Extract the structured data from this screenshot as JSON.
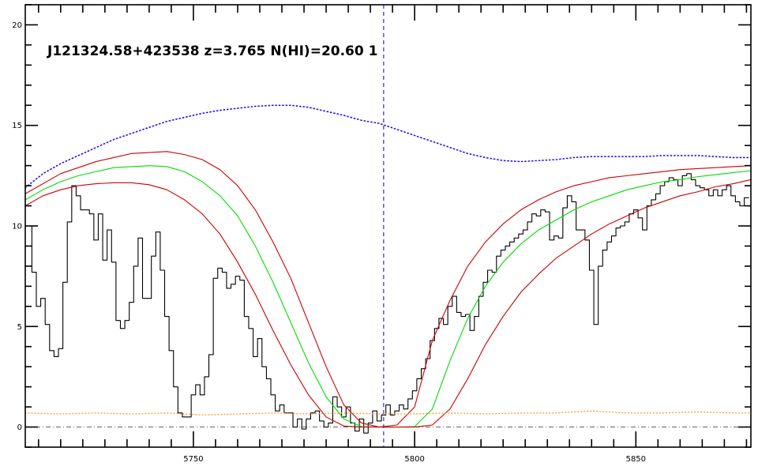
{
  "chart_data": {
    "type": "line",
    "title": "J121324.58+423538 z=3.765 N(HI)=20.60 1",
    "xlabel": "",
    "ylabel": "",
    "xlim": [
      5712,
      5876
    ],
    "ylim": [
      -1,
      21
    ],
    "x_ticks": [
      5750,
      5800,
      5850
    ],
    "y_ticks": [
      0,
      5,
      10,
      15,
      20
    ],
    "x_minor_step": 5,
    "y_minor_step": 1,
    "grid": false,
    "line_center": 5793,
    "colors": {
      "flux": "#000000",
      "fit": "#00dd00",
      "fit_bounds": "#cc0000",
      "continuum": "#3300ff",
      "error": "#ff9933",
      "zero": "#666666",
      "center": "#0000cc"
    },
    "series": [
      {
        "role": "flux",
        "style": "steps",
        "x": [
          5713,
          5714,
          5715,
          5716,
          5717,
          5718,
          5719,
          5720,
          5721,
          5722,
          5723,
          5724,
          5725,
          5726,
          5727,
          5728,
          5729,
          5730,
          5731,
          5732,
          5733,
          5734,
          5735,
          5736,
          5737,
          5738,
          5739,
          5740,
          5741,
          5742,
          5743,
          5744,
          5745,
          5746,
          5747,
          5748,
          5749,
          5750,
          5751,
          5752,
          5753,
          5754,
          5755,
          5756,
          5757,
          5758,
          5759,
          5760,
          5761,
          5762,
          5763,
          5764,
          5765,
          5766,
          5767,
          5768,
          5769,
          5770,
          5771,
          5772,
          5773,
          5774,
          5775,
          5776,
          5777,
          5778,
          5779,
          5780,
          5781,
          5782,
          5783,
          5784,
          5785,
          5786,
          5787,
          5788,
          5789,
          5790,
          5791,
          5792,
          5793,
          5794,
          5795,
          5796,
          5797,
          5798,
          5799,
          5800,
          5801,
          5802,
          5803,
          5804,
          5805,
          5806,
          5807,
          5808,
          5809,
          5810,
          5811,
          5812,
          5813,
          5814,
          5815,
          5816,
          5817,
          5818,
          5819,
          5820,
          5821,
          5822,
          5823,
          5824,
          5825,
          5826,
          5827,
          5828,
          5829,
          5830,
          5831,
          5832,
          5833,
          5834,
          5835,
          5836,
          5837,
          5838,
          5839,
          5840,
          5841,
          5842,
          5843,
          5844,
          5845,
          5846,
          5847,
          5848,
          5849,
          5850,
          5851,
          5852,
          5853,
          5854,
          5855,
          5856,
          5857,
          5858,
          5859,
          5860,
          5861,
          5862,
          5863,
          5864,
          5865,
          5866,
          5867,
          5868,
          5869,
          5870,
          5871,
          5872,
          5873,
          5874,
          5875
        ],
        "y": [
          10.0,
          7.7,
          6.0,
          6.4,
          5.1,
          3.8,
          3.5,
          3.9,
          7.2,
          10.2,
          12.0,
          11.5,
          10.8,
          10.8,
          10.6,
          9.3,
          10.6,
          8.3,
          9.8,
          8.2,
          5.3,
          4.9,
          5.3,
          6.2,
          8.0,
          9.4,
          6.4,
          6.4,
          8.5,
          9.7,
          7.8,
          5.5,
          3.8,
          2.0,
          0.7,
          0.5,
          0.5,
          1.6,
          2.1,
          1.6,
          2.5,
          3.6,
          7.4,
          7.9,
          7.7,
          6.9,
          7.1,
          7.5,
          7.3,
          5.5,
          4.9,
          3.5,
          4.4,
          3.0,
          2.4,
          1.6,
          0.8,
          1.1,
          0.7,
          0.7,
          0.0,
          0.4,
          -0.1,
          0.4,
          0.7,
          0.8,
          0.3,
          0.0,
          0.2,
          1.5,
          1.0,
          0.5,
          1.0,
          0.2,
          -0.2,
          0.4,
          -0.3,
          0.2,
          0.8,
          0.3,
          0.6,
          1.1,
          0.6,
          0.8,
          1.1,
          0.9,
          1.4,
          1.8,
          2.4,
          2.9,
          3.4,
          4.3,
          4.9,
          5.4,
          5.1,
          6.0,
          6.5,
          5.7,
          5.5,
          5.6,
          4.8,
          5.5,
          6.5,
          7.2,
          7.8,
          7.7,
          8.5,
          8.8,
          9.0,
          9.2,
          9.4,
          9.6,
          9.8,
          10.2,
          10.6,
          10.5,
          10.8,
          10.7,
          9.3,
          9.5,
          9.4,
          10.9,
          11.5,
          11.2,
          9.8,
          9.8,
          9.3,
          7.8,
          5.1,
          8.0,
          8.8,
          9.2,
          9.5,
          9.9,
          10.0,
          10.2,
          10.6,
          10.8,
          10.4,
          9.8,
          11.0,
          11.3,
          11.6,
          12.0,
          12.2,
          12.4,
          12.3,
          12.0,
          12.5,
          12.6,
          12.3,
          12.0,
          11.9,
          11.8,
          11.5,
          11.8,
          11.5,
          11.8,
          12.0,
          11.5,
          11.2,
          11.0,
          11.4
        ]
      },
      {
        "role": "fit",
        "style": "line",
        "x": [
          5712,
          5716,
          5720,
          5724,
          5728,
          5732,
          5736,
          5740,
          5744,
          5748,
          5752,
          5756,
          5760,
          5764,
          5768,
          5772,
          5776,
          5780,
          5784,
          5788,
          5792,
          5796,
          5800,
          5804,
          5808,
          5812,
          5816,
          5820,
          5824,
          5828,
          5832,
          5836,
          5840,
          5844,
          5848,
          5852,
          5856,
          5860,
          5864,
          5868,
          5872,
          5876
        ],
        "y": [
          11.3,
          11.8,
          12.2,
          12.5,
          12.7,
          12.9,
          12.95,
          13.0,
          12.95,
          12.7,
          12.2,
          11.5,
          10.5,
          9.0,
          7.2,
          5.2,
          3.2,
          1.5,
          0.4,
          0.02,
          0.0,
          0.0,
          0.02,
          0.9,
          3.3,
          5.4,
          7.0,
          8.2,
          9.1,
          9.8,
          10.3,
          10.8,
          11.2,
          11.5,
          11.8,
          12.0,
          12.2,
          12.3,
          12.45,
          12.55,
          12.65,
          12.75
        ]
      },
      {
        "role": "fit_upper",
        "style": "line",
        "x": [
          5712,
          5716,
          5720,
          5724,
          5728,
          5732,
          5736,
          5740,
          5744,
          5748,
          5752,
          5756,
          5760,
          5764,
          5768,
          5772,
          5776,
          5780,
          5784,
          5788,
          5792,
          5796,
          5800,
          5804,
          5808,
          5812,
          5816,
          5820,
          5824,
          5828,
          5832,
          5836,
          5840,
          5844,
          5848,
          5852,
          5856,
          5860,
          5864,
          5868,
          5872,
          5876
        ],
        "y": [
          11.6,
          12.1,
          12.6,
          12.9,
          13.2,
          13.4,
          13.6,
          13.65,
          13.7,
          13.55,
          13.3,
          12.8,
          12.0,
          10.8,
          9.2,
          7.4,
          5.2,
          3.0,
          1.1,
          0.2,
          0.0,
          0.1,
          1.0,
          4.3,
          6.3,
          8.0,
          9.2,
          10.1,
          10.8,
          11.3,
          11.7,
          12.0,
          12.2,
          12.4,
          12.5,
          12.6,
          12.7,
          12.8,
          12.85,
          12.9,
          12.95,
          13.0
        ]
      },
      {
        "role": "fit_lower",
        "style": "line",
        "x": [
          5712,
          5716,
          5720,
          5724,
          5728,
          5732,
          5736,
          5740,
          5744,
          5748,
          5752,
          5756,
          5760,
          5764,
          5768,
          5772,
          5776,
          5780,
          5784,
          5788,
          5792,
          5796,
          5800,
          5804,
          5808,
          5812,
          5816,
          5820,
          5824,
          5828,
          5832,
          5836,
          5840,
          5844,
          5848,
          5852,
          5856,
          5860,
          5864,
          5868,
          5872,
          5876
        ],
        "y": [
          11.0,
          11.5,
          11.8,
          12.0,
          12.1,
          12.15,
          12.15,
          12.05,
          11.8,
          11.3,
          10.6,
          9.6,
          8.2,
          6.6,
          4.8,
          3.1,
          1.6,
          0.5,
          0.05,
          0.0,
          0.0,
          0.0,
          0.0,
          0.1,
          0.9,
          2.4,
          4.1,
          5.5,
          6.7,
          7.6,
          8.4,
          9.0,
          9.6,
          10.1,
          10.5,
          10.9,
          11.2,
          11.5,
          11.7,
          11.95,
          12.1,
          12.3
        ]
      },
      {
        "role": "continuum",
        "style": "dotted",
        "x": [
          5712,
          5716,
          5720,
          5724,
          5728,
          5732,
          5736,
          5740,
          5744,
          5748,
          5752,
          5756,
          5760,
          5764,
          5768,
          5772,
          5776,
          5780,
          5784,
          5788,
          5792,
          5796,
          5800,
          5804,
          5808,
          5812,
          5816,
          5820,
          5824,
          5828,
          5832,
          5836,
          5840,
          5844,
          5848,
          5852,
          5856,
          5860,
          5864,
          5868,
          5872,
          5876
        ],
        "y": [
          11.9,
          12.6,
          13.1,
          13.5,
          13.9,
          14.3,
          14.6,
          14.9,
          15.2,
          15.4,
          15.6,
          15.75,
          15.85,
          15.95,
          16.0,
          16.0,
          15.9,
          15.7,
          15.5,
          15.25,
          15.1,
          14.8,
          14.5,
          14.2,
          13.9,
          13.6,
          13.4,
          13.25,
          13.2,
          13.25,
          13.3,
          13.4,
          13.45,
          13.45,
          13.45,
          13.45,
          13.5,
          13.5,
          13.5,
          13.45,
          13.4,
          13.4
        ]
      },
      {
        "role": "error",
        "style": "dotted",
        "x": [
          5712,
          5720,
          5728,
          5736,
          5744,
          5752,
          5760,
          5768,
          5776,
          5784,
          5792,
          5800,
          5808,
          5816,
          5824,
          5832,
          5840,
          5848,
          5856,
          5864,
          5872,
          5876
        ],
        "y": [
          0.7,
          0.65,
          0.7,
          0.65,
          0.7,
          0.6,
          0.65,
          0.7,
          0.65,
          0.7,
          0.65,
          0.65,
          0.7,
          0.65,
          0.7,
          0.7,
          0.8,
          0.7,
          0.7,
          0.75,
          0.7,
          0.7
        ]
      }
    ]
  }
}
